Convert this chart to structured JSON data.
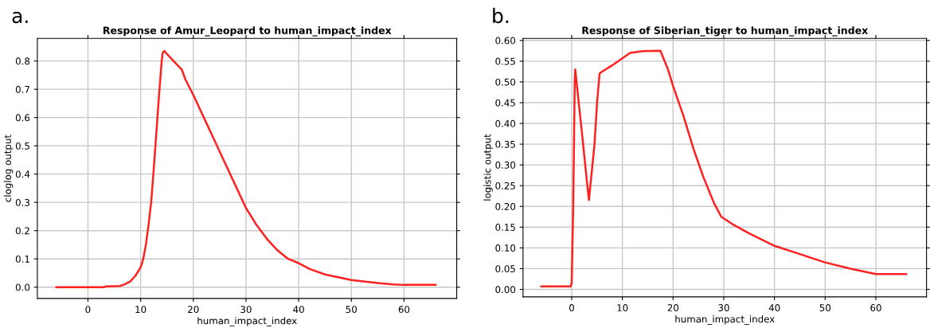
{
  "chart_data": [
    {
      "type": "line",
      "title": "Response of Amur_Leopard to human_impact_index",
      "xlabel": "human_impact_index",
      "ylabel": "cloglog output",
      "annotations": [
        "a."
      ],
      "x": [
        -6,
        3,
        3.5,
        6,
        7,
        8,
        9,
        10,
        10.5,
        11,
        11.5,
        12,
        12.5,
        13,
        13.5,
        14,
        14.2,
        14.5,
        15,
        16,
        17,
        17.8,
        18.5,
        20,
        22,
        24,
        26,
        28,
        30,
        32,
        34,
        36,
        38,
        40,
        42,
        45,
        50,
        55,
        58,
        60,
        66
      ],
      "series": [
        {
          "color": "#ff2020",
          "values": [
            0,
            0,
            0.003,
            0.004,
            0.01,
            0.02,
            0.04,
            0.07,
            0.1,
            0.15,
            0.22,
            0.3,
            0.42,
            0.55,
            0.68,
            0.8,
            0.83,
            0.835,
            0.825,
            0.805,
            0.785,
            0.77,
            0.735,
            0.68,
            0.6,
            0.52,
            0.44,
            0.36,
            0.28,
            0.22,
            0.17,
            0.13,
            0.1,
            0.085,
            0.065,
            0.045,
            0.025,
            0.015,
            0.01,
            0.008,
            0.008
          ]
        }
      ],
      "xlim": [
        -9.6,
        70
      ],
      "xticks": [
        0,
        10,
        20,
        30,
        40,
        50,
        60
      ],
      "ylim": [
        -0.04,
        0.88
      ],
      "yticks": [
        {
          "value": 0,
          "label": "0.0"
        },
        0.1,
        0.2,
        0.3,
        0.4,
        0.5,
        0.6,
        0.7,
        0.8
      ],
      "grid": true,
      "line_style": "solid",
      "marker": "none"
    },
    {
      "type": "line",
      "title": "Response of Siberian_tiger to human_impact_index",
      "xlabel": "human_impact_index",
      "ylabel": "logistic output",
      "annotations": [
        "b."
      ],
      "x": [
        -6,
        -0.2,
        0,
        0.3,
        0.6,
        0.7,
        2,
        3,
        3.4,
        4.5,
        5,
        5.5,
        6,
        8,
        10,
        11.5,
        14,
        17.5,
        19,
        20,
        22,
        24,
        26,
        28,
        29.5,
        32,
        35,
        40,
        45,
        50,
        55,
        60,
        66
      ],
      "series": [
        {
          "color": "#ff2020",
          "values": [
            0.007,
            0.007,
            0.015,
            0.2,
            0.5,
            0.53,
            0.38,
            0.26,
            0.215,
            0.35,
            0.45,
            0.52,
            0.525,
            0.54,
            0.557,
            0.57,
            0.574,
            0.575,
            0.53,
            0.49,
            0.42,
            0.34,
            0.27,
            0.21,
            0.175,
            0.155,
            0.135,
            0.105,
            0.085,
            0.065,
            0.05,
            0.037,
            0.037
          ]
        }
      ],
      "xlim": [
        -9.6,
        70
      ],
      "xticks": [
        0,
        10,
        20,
        30,
        40,
        50,
        60
      ],
      "ylim": [
        -0.018,
        0.605
      ],
      "yticks": [
        {
          "value": 0,
          "label": "0.00"
        },
        {
          "value": 0.05,
          "label": "0.05"
        },
        {
          "value": 0.1,
          "label": "0.10"
        },
        {
          "value": 0.15,
          "label": "0.15"
        },
        {
          "value": 0.2,
          "label": "0.20"
        },
        {
          "value": 0.25,
          "label": "0.25"
        },
        {
          "value": 0.3,
          "label": "0.30"
        },
        {
          "value": 0.35,
          "label": "0.35"
        },
        {
          "value": 0.4,
          "label": "0.40"
        },
        {
          "value": 0.45,
          "label": "0.45"
        },
        {
          "value": 0.5,
          "label": "0.50"
        },
        {
          "value": 0.55,
          "label": "0.55"
        },
        {
          "value": 0.6,
          "label": "0.60"
        }
      ],
      "grid": true,
      "line_style": "solid",
      "marker": "none"
    }
  ]
}
